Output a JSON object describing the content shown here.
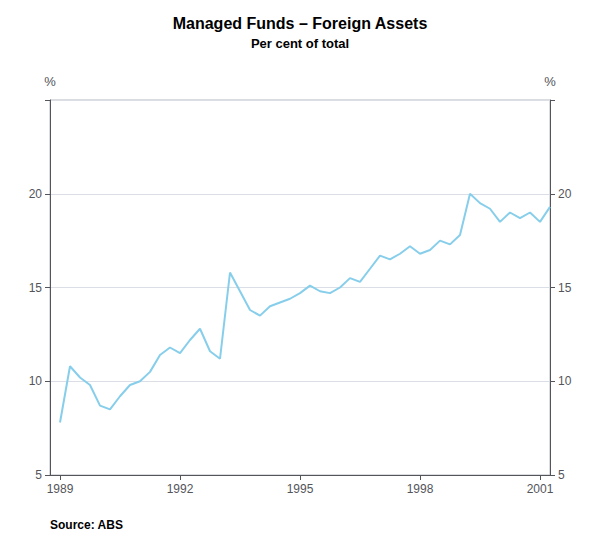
{
  "chart_data": {
    "type": "line",
    "title": "Managed Funds – Foreign Assets",
    "subtitle": "Per cent of total",
    "source": "Source: ABS",
    "ylabel": "%",
    "y2label": "%",
    "color": "#87CEEB",
    "grid": true,
    "xlim": [
      1988.75,
      2001.25
    ],
    "xticks": [
      1989,
      1992,
      1995,
      1998,
      2001
    ],
    "ylim": [
      5,
      25
    ],
    "yticks": [
      5,
      10,
      15,
      20
    ],
    "y2lim": [
      5,
      25
    ],
    "y2ticks": [
      5,
      10,
      15,
      20
    ],
    "x": [
      1989.0,
      1989.25,
      1989.5,
      1989.75,
      1990.0,
      1990.25,
      1990.5,
      1990.75,
      1991.0,
      1991.25,
      1991.5,
      1991.75,
      1992.0,
      1992.25,
      1992.5,
      1992.75,
      1993.0,
      1993.25,
      1993.5,
      1993.75,
      1994.0,
      1994.25,
      1994.5,
      1994.75,
      1995.0,
      1995.25,
      1995.5,
      1995.75,
      1996.0,
      1996.25,
      1996.5,
      1996.75,
      1997.0,
      1997.25,
      1997.5,
      1997.75,
      1998.0,
      1998.25,
      1998.5,
      1998.75,
      1999.0,
      1999.25,
      1999.5,
      1999.75,
      2000.0,
      2000.25,
      2000.5,
      2000.75,
      2001.0,
      2001.25
    ],
    "values": [
      7.8,
      10.8,
      10.2,
      9.8,
      8.7,
      8.5,
      9.2,
      9.8,
      10.0,
      10.5,
      11.4,
      11.8,
      11.5,
      12.2,
      12.8,
      11.6,
      11.2,
      15.8,
      14.8,
      13.8,
      13.5,
      14.0,
      14.2,
      14.4,
      14.7,
      15.1,
      14.8,
      14.7,
      15.0,
      15.5,
      15.3,
      16.0,
      16.7,
      16.5,
      16.8,
      17.2,
      16.8,
      17.0,
      17.5,
      17.3,
      17.8,
      20.0,
      19.5,
      19.2,
      18.5,
      19.0,
      18.7,
      19.0,
      18.5,
      19.3
    ]
  }
}
